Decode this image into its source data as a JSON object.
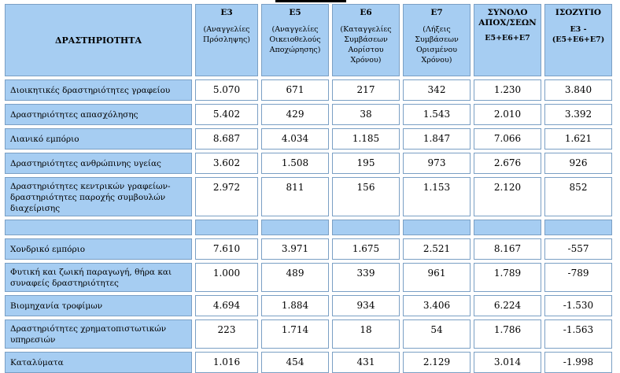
{
  "header": {
    "activity": "ΔΡΑΣΤΗΡΙΟΤΗΤΑ",
    "e3": {
      "code": "Ε3",
      "desc": "(Αναγγελίες Πρόσληψης)"
    },
    "e5": {
      "code": "Ε5",
      "desc": "(Αναγγελίες Οικειοθελούς Αποχώρησης)"
    },
    "e6": {
      "code": "Ε6",
      "desc": "(Καταγγελίες Συμβάσεων Αορίστου Χρόνου)"
    },
    "e7": {
      "code": "Ε7",
      "desc": "(Λήξεις Συμβάσεων Ορισμένου Χρόνου)"
    },
    "total": {
      "code": "ΣΥΝΟΛΟ ΑΠΟΧ/ΣΕΩΝ",
      "desc": "Ε5+Ε6+Ε7"
    },
    "balance": {
      "code": "ΙΣΟΖΥΓΙΟ",
      "desc": "Ε3 - (Ε5+Ε6+Ε7)"
    }
  },
  "rows": [
    {
      "label": "Διοικητικές δραστηριότητες γραφείου",
      "e3": "5.070",
      "e5": "671",
      "e6": "217",
      "e7": "342",
      "total": "1.230",
      "balance": "3.840"
    },
    {
      "label": "Δραστηριότητες απασχόλησης",
      "e3": "5.402",
      "e5": "429",
      "e6": "38",
      "e7": "1.543",
      "total": "2.010",
      "balance": "3.392"
    },
    {
      "label": "Λιανικό εμπόριο",
      "e3": "8.687",
      "e5": "4.034",
      "e6": "1.185",
      "e7": "1.847",
      "total": "7.066",
      "balance": "1.621"
    },
    {
      "label": "Δραστηριότητες ανθρώπινης υγείας",
      "e3": "3.602",
      "e5": "1.508",
      "e6": "195",
      "e7": "973",
      "total": "2.676",
      "balance": "926"
    },
    {
      "label": "Δραστηριότητες κεντρικών γραφείων- δραστηριότητες παροχής συμβουλών διαχείρισης",
      "e3": "2.972",
      "e5": "811",
      "e6": "156",
      "e7": "1.153",
      "total": "2.120",
      "balance": "852"
    },
    {
      "label": "Χονδρικό εμπόριο",
      "e3": "7.610",
      "e5": "3.971",
      "e6": "1.675",
      "e7": "2.521",
      "total": "8.167",
      "balance": "-557"
    },
    {
      "label": "Φυτική και ζωική παραγωγή, θήρα και συναφείς δραστηριότητες",
      "e3": "1.000",
      "e5": "489",
      "e6": "339",
      "e7": "961",
      "total": "1.789",
      "balance": "-789"
    },
    {
      "label": "Βιομηχανία τροφίμων",
      "e3": "4.694",
      "e5": "1.884",
      "e6": "934",
      "e7": "3.406",
      "total": "6.224",
      "balance": "-1.530"
    },
    {
      "label": "Δραστηριότητες χρηματοπιστωτικών υπηρεσιών",
      "e3": "223",
      "e5": "1.714",
      "e6": "18",
      "e7": "54",
      "total": "1.786",
      "balance": "-1.563"
    },
    {
      "label": "Καταλύματα",
      "e3": "1.016",
      "e5": "454",
      "e6": "431",
      "e7": "2.129",
      "total": "3.014",
      "balance": "-1.998"
    }
  ]
}
